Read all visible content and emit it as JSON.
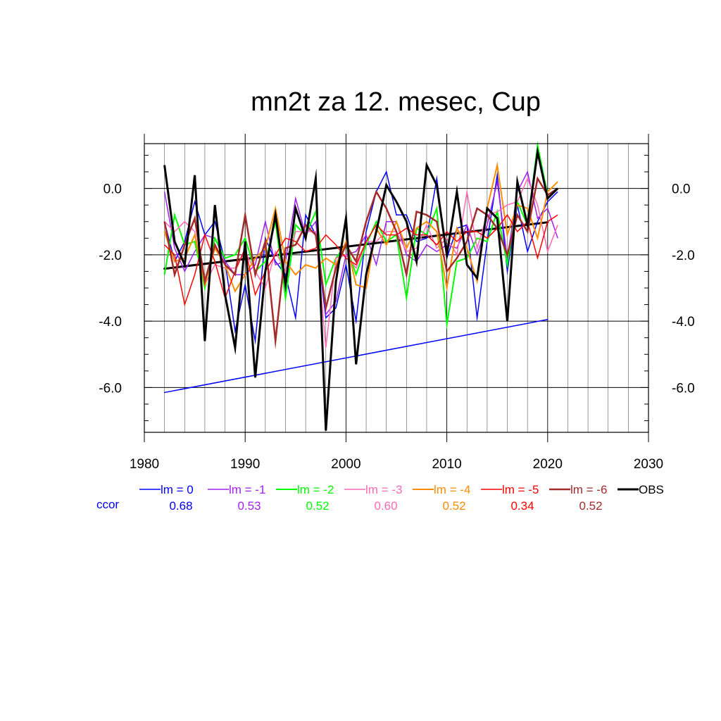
{
  "chart_data": {
    "type": "line",
    "title": "mn2t za 12. mesec, Cup",
    "xlim": [
      1980,
      2030
    ],
    "ylim": [
      -7.35,
      1.35
    ],
    "x_ticks": [
      1980,
      1990,
      2000,
      2010,
      2020,
      2030
    ],
    "x_tick_labels": [
      "1980",
      "1990",
      "2000",
      "2010",
      "2020",
      "2030"
    ],
    "y_ticks": [
      0,
      -2,
      -4,
      -6
    ],
    "y_tick_labels": [
      "0.0",
      "-2.0",
      "-4.0",
      "-6.0"
    ],
    "grid": true,
    "years": [
      1982,
      1983,
      1984,
      1985,
      1986,
      1987,
      1988,
      1989,
      1990,
      1991,
      1992,
      1993,
      1994,
      1995,
      1996,
      1997,
      1998,
      1999,
      2000,
      2001,
      2002,
      2003,
      2004,
      2005,
      2006,
      2007,
      2008,
      2009,
      2010,
      2011,
      2012,
      2013,
      2014,
      2015,
      2016,
      2017,
      2018,
      2019,
      2020,
      2021
    ],
    "ccor_label": "ccor",
    "series": [
      {
        "name": "lm = 0",
        "color": "#0000ff",
        "width": 1.5,
        "ccor": "0.68",
        "values": [
          -1.0,
          -2.2,
          -1.6,
          -0.4,
          -1.4,
          -1.0,
          -2.2,
          -4.3,
          -2.9,
          -4.6,
          -1.5,
          -2.2,
          -2.6,
          -3.9,
          -0.8,
          -1.4,
          -3.9,
          -3.6,
          -2.3,
          -4.0,
          -1.3,
          -0.1,
          0.5,
          -0.8,
          -0.8,
          -1.6,
          -1.5,
          0.3,
          -2.1,
          -1.2,
          -1.1,
          -3.9,
          -1.6,
          0.4,
          -2.5,
          -0.5,
          -1.9,
          -1.0,
          -0.4,
          -0.1
        ]
      },
      {
        "name": "lm = -1",
        "color": "#a020f0",
        "width": 1.5,
        "ccor": "0.53",
        "values": [
          -0.1,
          -1.8,
          -2.5,
          -1.9,
          -1.4,
          -1.5,
          -2.2,
          -2.6,
          -2.6,
          -2.3,
          -1.0,
          -2.3,
          -2.2,
          -0.3,
          -1.4,
          -1.0,
          -3.8,
          -3.4,
          -2.0,
          -1.9,
          -1.4,
          -2.3,
          -1.0,
          -1.0,
          -2.0,
          -2.2,
          -1.7,
          -1.9,
          -1.7,
          -1.8,
          -1.1,
          -2.0,
          -1.1,
          0.2,
          -2.1,
          -0.1,
          0.5,
          -0.9,
          -0.6,
          -1.5
        ]
      },
      {
        "name": "lm = -2",
        "color": "#00ff00",
        "width": 2,
        "ccor": "0.52",
        "values": [
          -2.6,
          -0.8,
          -1.7,
          -1.6,
          -3.0,
          -1.5,
          -2.1,
          -2.0,
          -1.5,
          -2.5,
          -2.2,
          -1.0,
          -3.3,
          -1.1,
          -1.4,
          -0.7,
          -2.9,
          -2.1,
          -1.7,
          -2.6,
          -1.7,
          -1.0,
          -1.6,
          -1.4,
          -3.3,
          -1.2,
          -1.4,
          -0.6,
          -4.1,
          -2.2,
          -2.1,
          -1.5,
          -1.6,
          -0.7,
          -2.3,
          -0.4,
          -1.1,
          1.3,
          -0.2,
          0.0
        ]
      },
      {
        "name": "lm = -3",
        "color": "#ff69b4",
        "width": 1.5,
        "ccor": "0.60",
        "values": [
          -1.0,
          -1.3,
          -1.0,
          -1.3,
          -2.9,
          -2.3,
          -2.4,
          -2.4,
          -1.9,
          -2.5,
          -3.0,
          -1.9,
          -2.5,
          -1.3,
          -1.3,
          -1.3,
          -4.8,
          -2.1,
          -2.0,
          -2.4,
          -1.6,
          -1.6,
          -1.3,
          -1.3,
          -1.9,
          -1.8,
          -1.1,
          -1.8,
          -1.5,
          -2.0,
          -0.1,
          -1.8,
          -0.8,
          -0.7,
          -0.5,
          -0.4,
          0.3,
          -0.5,
          -1.9,
          -1.1
        ]
      },
      {
        "name": "lm = -4",
        "color": "#ff8c00",
        "width": 2,
        "ccor": "0.52",
        "values": [
          -1.3,
          -2.2,
          -2.1,
          -1.4,
          -2.9,
          -1.8,
          -2.3,
          -3.1,
          -2.6,
          -2.1,
          -1.8,
          -0.6,
          -2.2,
          -2.6,
          -2.3,
          -2.4,
          -2.1,
          -2.3,
          -1.6,
          -2.9,
          -3.0,
          -1.2,
          -1.7,
          -1.0,
          -1.8,
          -1.2,
          -1.0,
          -1.3,
          -3.0,
          -1.2,
          -1.8,
          -2.8,
          -0.6,
          0.7,
          -1.4,
          -0.5,
          -0.6,
          -1.5,
          -0.1,
          0.2
        ]
      },
      {
        "name": "lm = -5",
        "color": "#ff0000",
        "width": 1.5,
        "ccor": "0.34",
        "values": [
          -1.7,
          -2.0,
          -3.5,
          -2.6,
          -1.4,
          -2.2,
          -3.3,
          -2.5,
          -1.8,
          -3.2,
          -2.5,
          -2.0,
          -1.5,
          -1.6,
          -1.9,
          -1.8,
          -1.4,
          -1.7,
          -2.1,
          -2.3,
          -1.6,
          -1.1,
          -1.4,
          -1.4,
          -1.2,
          -1.4,
          -1.4,
          -1.7,
          -1.3,
          -1.6,
          -1.3,
          -1.3,
          -1.5,
          -1.2,
          -0.8,
          -1.3,
          -1.0,
          -2.1,
          -1.0,
          -0.8
        ]
      },
      {
        "name": "lm = -6",
        "color": "#a52a2a",
        "width": 2.5,
        "ccor": "0.52",
        "values": [
          -1.0,
          -2.6,
          -1.7,
          -0.9,
          -2.8,
          -1.7,
          -2.3,
          -2.6,
          -0.8,
          -2.6,
          -1.6,
          -4.6,
          -1.8,
          -1.7,
          -1.1,
          -1.4,
          -3.6,
          -2.4,
          -1.7,
          -2.2,
          -1.0,
          -0.1,
          -0.6,
          -1.3,
          -2.6,
          -0.7,
          -0.8,
          -1.0,
          -2.5,
          -2.1,
          -1.6,
          -0.6,
          -0.8,
          -1.2,
          -2.0,
          -0.8,
          -1.3,
          0.3,
          -0.2,
          0.0
        ]
      },
      {
        "name": "OBS",
        "color": "#000000",
        "width": 3,
        "ccor": "",
        "values": [
          0.7,
          -1.6,
          -2.3,
          0.4,
          -4.6,
          -0.5,
          -3.2,
          -4.8,
          -1.6,
          -5.7,
          -2.5,
          -0.8,
          -2.9,
          -0.6,
          -1.5,
          0.3,
          -7.3,
          -2.8,
          -0.9,
          -5.3,
          -2.6,
          -1.3,
          0.1,
          -0.4,
          -1.0,
          -2.2,
          0.7,
          0.1,
          -2.0,
          -0.1,
          -2.3,
          -2.7,
          -0.6,
          -0.9,
          -4.0,
          0.2,
          -1.1,
          1.1,
          -0.3,
          0.0
        ]
      }
    ],
    "trend_lines": [
      {
        "color": "#0000ff",
        "width": 1.5,
        "x": [
          1982,
          2020
        ],
        "y": [
          -6.15,
          -3.95
        ]
      },
      {
        "color": "#000000",
        "width": 3,
        "x": [
          1982,
          2020
        ],
        "y": [
          -2.42,
          -1.02
        ]
      }
    ]
  }
}
